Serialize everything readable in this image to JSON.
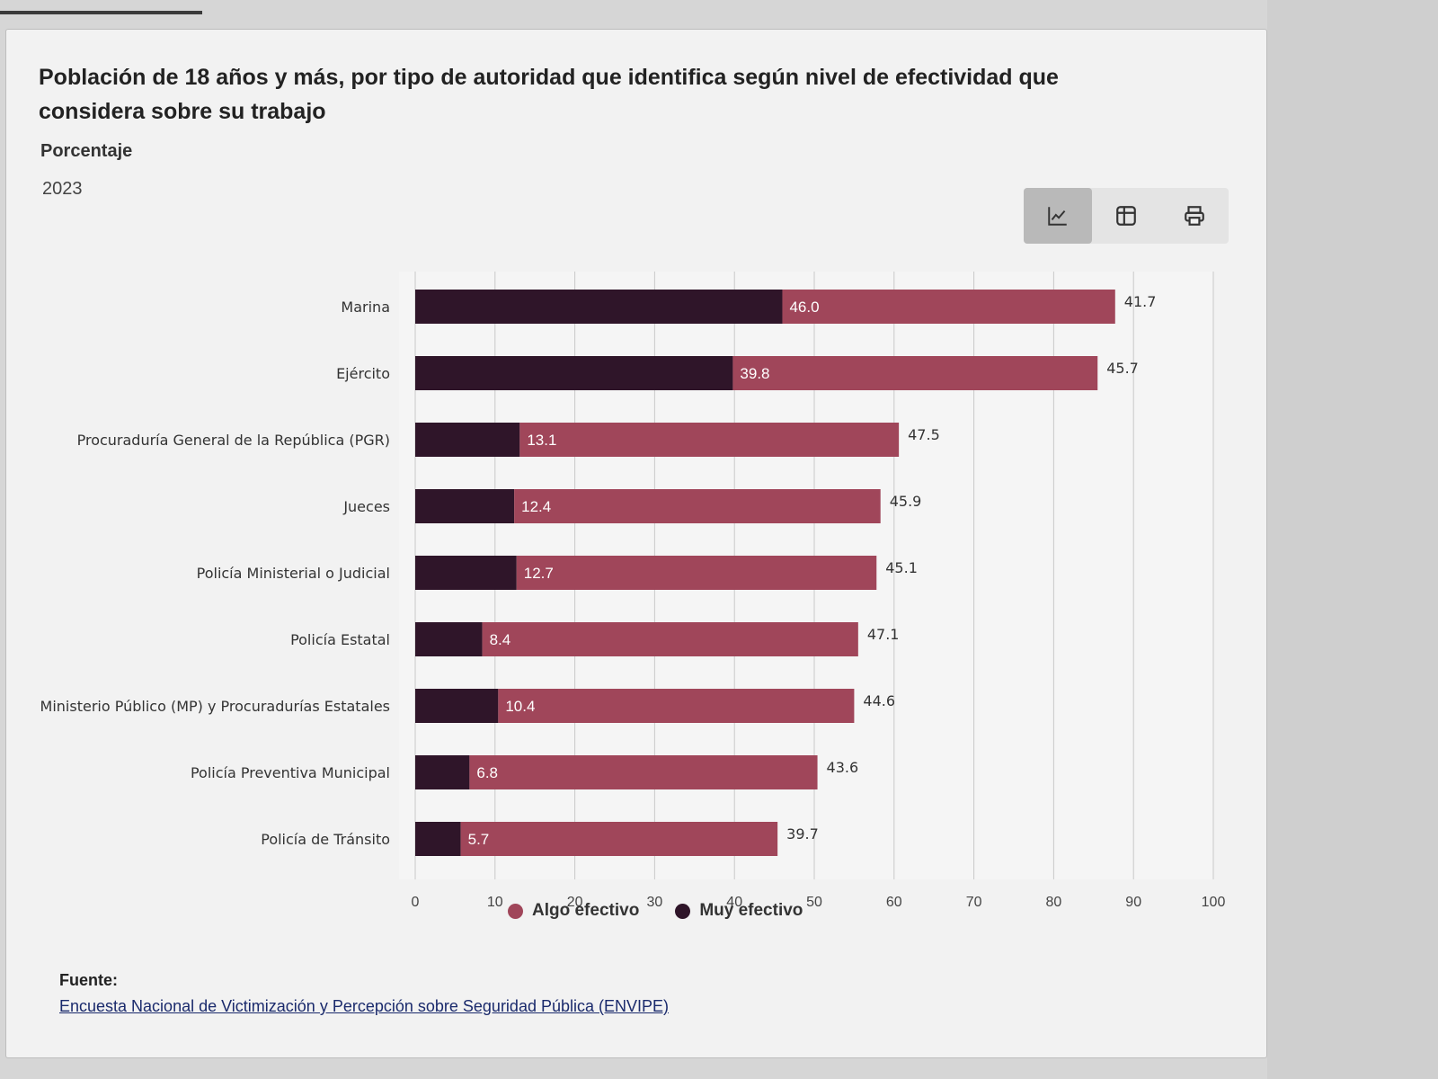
{
  "page": {
    "title": "Población de 18 años y más, por tipo de autoridad que identifica según nivel de efectividad que considera sobre su trabajo",
    "subtitle": "Porcentaje",
    "year": "2023"
  },
  "toolbar": {
    "buttons": [
      {
        "icon": "line-chart-icon",
        "active": true
      },
      {
        "icon": "table-icon",
        "active": false
      },
      {
        "icon": "print-icon",
        "active": false
      }
    ]
  },
  "source": {
    "label": "Fuente:",
    "link_text": "Encuesta Nacional de Victimización y Percepción sobre Seguridad Pública (ENVIPE)"
  },
  "colors": {
    "muy_efectivo": "#2f1529",
    "algo_efectivo": "#a0465a",
    "grid": "#c9c9c9"
  },
  "chart_data": {
    "type": "bar",
    "orientation": "horizontal",
    "stacked": true,
    "categories": [
      "Marina",
      "Ejército",
      "Procuraduría General de la República (PGR)",
      "Jueces",
      "Policía Ministerial o Judicial",
      "Policía Estatal",
      "Ministerio Público (MP) y Procuradurías Estatales",
      "Policía Preventiva Municipal",
      "Policía de Tránsito"
    ],
    "series": [
      {
        "name": "Muy efectivo",
        "values": [
          46.0,
          39.8,
          13.1,
          12.4,
          12.7,
          8.4,
          10.4,
          6.8,
          5.7
        ],
        "labels": [
          "46.0",
          "39.8",
          "13.1",
          "12.4",
          "12.7",
          "8.4",
          "10.4",
          "6.8",
          "5.7"
        ]
      },
      {
        "name": "Algo efectivo",
        "values": [
          41.7,
          45.7,
          47.5,
          45.9,
          45.1,
          47.1,
          44.6,
          43.6,
          39.7
        ],
        "labels": [
          "41.7",
          "45.7",
          "47.5",
          "45.9",
          "45.1",
          "47.1",
          "44.6",
          "43.6",
          "39.7"
        ]
      }
    ],
    "xlim": [
      0,
      100
    ],
    "xticks": [
      "0",
      "10",
      "20",
      "30",
      "40",
      "50",
      "60",
      "70",
      "80",
      "90",
      "100"
    ],
    "grid": true,
    "legend": {
      "position": "bottom",
      "entries": [
        {
          "name": "Algo efectivo",
          "color": "#a0465a"
        },
        {
          "name": "Muy efectivo",
          "color": "#2f1529"
        }
      ]
    }
  }
}
